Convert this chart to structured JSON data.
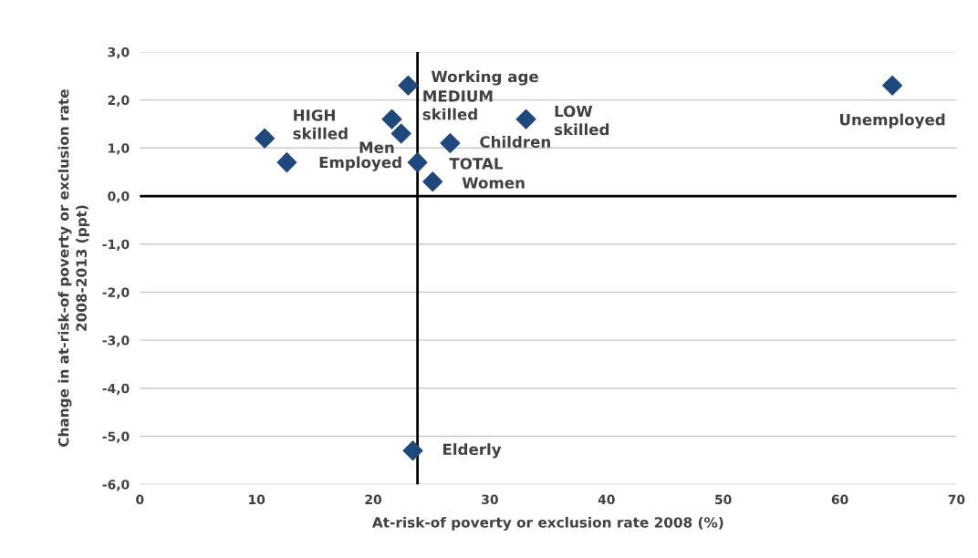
{
  "chart_data": {
    "type": "scatter",
    "xlabel": "At-risk-of poverty or exclusion rate 2008 (%)",
    "ylabel": "Change in at-risk-of poverty or exclusion rate\n2008-2013 (ppt)",
    "x": [
      23.0,
      10.7,
      21.6,
      22.4,
      26.6,
      12.6,
      23.8,
      25.1,
      33.1,
      64.5,
      23.4
    ],
    "series": [
      {
        "color": "#1f497d",
        "values": [
          2.3,
          1.2,
          1.6,
          1.3,
          1.1,
          0.7,
          0.7,
          0.3,
          1.6,
          2.3,
          -5.3
        ]
      }
    ],
    "marker": "diamond",
    "xlim": [
      0,
      70
    ],
    "ylim": [
      -6,
      3
    ],
    "xticks": [
      0,
      10,
      20,
      30,
      40,
      50,
      60,
      70
    ],
    "yticks": [
      {
        "value": 3,
        "label": "3,0"
      },
      {
        "value": 2,
        "label": "2,0"
      },
      {
        "value": 1,
        "label": "1,0"
      },
      {
        "value": 0,
        "label": "0,0"
      },
      {
        "value": -1,
        "label": "-1,0"
      },
      {
        "value": -2,
        "label": "-2,0"
      },
      {
        "value": -3,
        "label": "-3,0"
      },
      {
        "value": -4,
        "label": "-4,0"
      },
      {
        "value": -5,
        "label": "-5,0"
      },
      {
        "value": -6,
        "label": "-6,0"
      }
    ],
    "grid": "y",
    "ref_lines": [
      {
        "axis": "y",
        "value": 0,
        "color": "#000000"
      },
      {
        "axis": "x",
        "value": 23.8,
        "color": "#000000"
      }
    ],
    "annotations": [
      {
        "text": "Working age",
        "x": 23.0,
        "y": 2.3
      },
      {
        "text": "HIGH\nskilled",
        "x": 10.7,
        "y": 1.2
      },
      {
        "text": "MEDIUM\nskilled",
        "x": 21.6,
        "y": 1.6
      },
      {
        "text": "Men",
        "x": 22.4,
        "y": 1.3
      },
      {
        "text": "Children",
        "x": 26.6,
        "y": 1.1
      },
      {
        "text": "Employed",
        "x": 12.6,
        "y": 0.7
      },
      {
        "text": "TOTAL",
        "x": 23.8,
        "y": 0.7
      },
      {
        "text": "Women",
        "x": 25.1,
        "y": 0.3
      },
      {
        "text": "LOW\nskilled",
        "x": 33.1,
        "y": 1.6
      },
      {
        "text": "Unemployed",
        "x": 64.5,
        "y": 2.3
      },
      {
        "text": "Elderly",
        "x": 23.4,
        "y": -5.3
      }
    ]
  }
}
